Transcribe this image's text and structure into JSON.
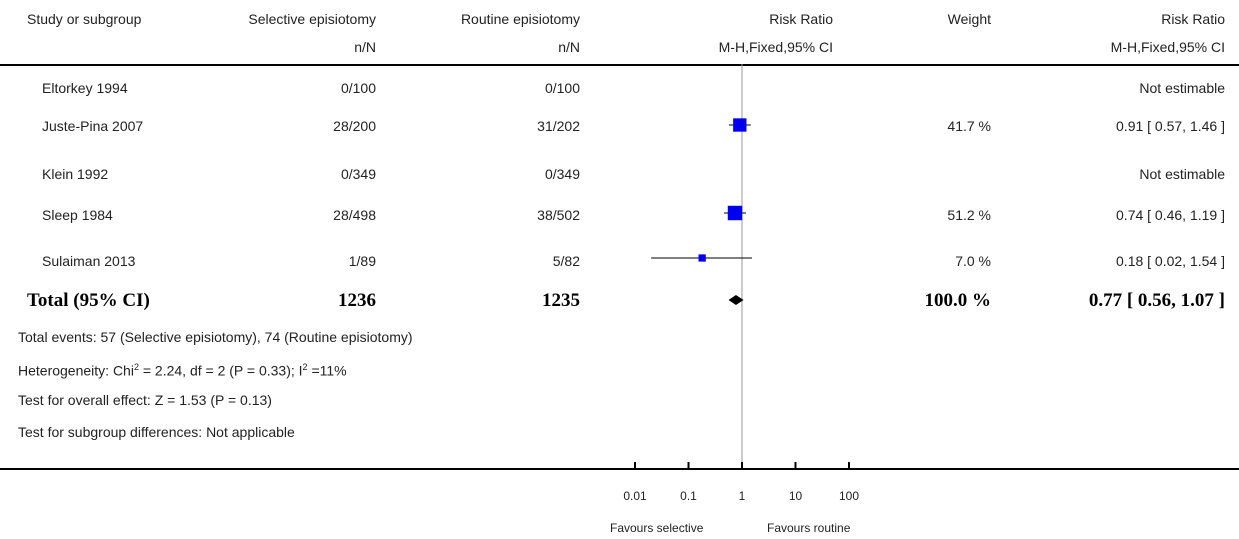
{
  "header": {
    "col_study": "Study or subgroup",
    "col_selective": "Selective episiotomy",
    "col_routine": "Routine episiotomy",
    "col_rr": "Risk Ratio",
    "col_weight": "Weight",
    "col_rr2": "Risk Ratio",
    "sub_selective": "n/N",
    "sub_routine": "n/N",
    "sub_rr": "M-H,Fixed,95% CI",
    "sub_rr2": "M-H,Fixed,95% CI"
  },
  "studies": [
    {
      "name": "Eltorkey 1994",
      "selective": "0/100",
      "routine": "0/100",
      "weight": "",
      "ci_text": "Not estimable"
    },
    {
      "name": "Juste-Pina 2007",
      "selective": "28/200",
      "routine": "31/202",
      "weight": "41.7 %",
      "ci_text": "0.91 [ 0.57, 1.46 ]"
    },
    {
      "name": "Klein 1992",
      "selective": "0/349",
      "routine": "0/349",
      "weight": "",
      "ci_text": "Not estimable"
    },
    {
      "name": "Sleep 1984",
      "selective": "28/498",
      "routine": "38/502",
      "weight": "51.2 %",
      "ci_text": "0.74 [ 0.46, 1.19 ]"
    },
    {
      "name": "Sulaiman 2013",
      "selective": "1/89",
      "routine": "5/82",
      "weight": "7.0 %",
      "ci_text": "0.18 [ 0.02, 1.54 ]"
    }
  ],
  "total": {
    "label": "Total (95% CI)",
    "selective": "1236",
    "routine": "1235",
    "weight": "100.0 %",
    "ci_text": "0.77 [ 0.56, 1.07 ]"
  },
  "footnotes": {
    "events": "Total events: 57 (Selective episiotomy), 74 (Routine episiotomy)",
    "heterogeneity_pre": "Heterogeneity: Chi",
    "heterogeneity_mid": " = 2.24, df = 2 (P = 0.33); I",
    "heterogeneity_post": " =11%",
    "sup": "2",
    "overall": "Test for overall effect: Z = 1.53 (P = 0.13)",
    "subgroup": "Test for subgroup differences: Not applicable"
  },
  "axis": {
    "favours_left": "Favours selective",
    "favours_right": "Favours routine"
  },
  "chart_data": {
    "type": "forest",
    "scale": "log",
    "xlim": [
      0.01,
      100
    ],
    "ticks": [
      0.01,
      0.1,
      1,
      10,
      100
    ],
    "tick_labels": [
      "0.01",
      "0.1",
      "1",
      "10",
      "100"
    ],
    "null_line": 1,
    "studies": [
      {
        "name": "Eltorkey 1994",
        "rr": null,
        "lo": null,
        "hi": null,
        "weight": null
      },
      {
        "name": "Juste-Pina 2007",
        "rr": 0.91,
        "lo": 0.57,
        "hi": 1.46,
        "weight": 41.7
      },
      {
        "name": "Klein 1992",
        "rr": null,
        "lo": null,
        "hi": null,
        "weight": null
      },
      {
        "name": "Sleep 1984",
        "rr": 0.74,
        "lo": 0.46,
        "hi": 1.19,
        "weight": 51.2
      },
      {
        "name": "Sulaiman 2013",
        "rr": 0.18,
        "lo": 0.02,
        "hi": 1.54,
        "weight": 7.0
      }
    ],
    "total": {
      "rr": 0.77,
      "lo": 0.56,
      "hi": 1.07
    },
    "marker_color": "#0000ee",
    "diamond_color": "#000000"
  }
}
